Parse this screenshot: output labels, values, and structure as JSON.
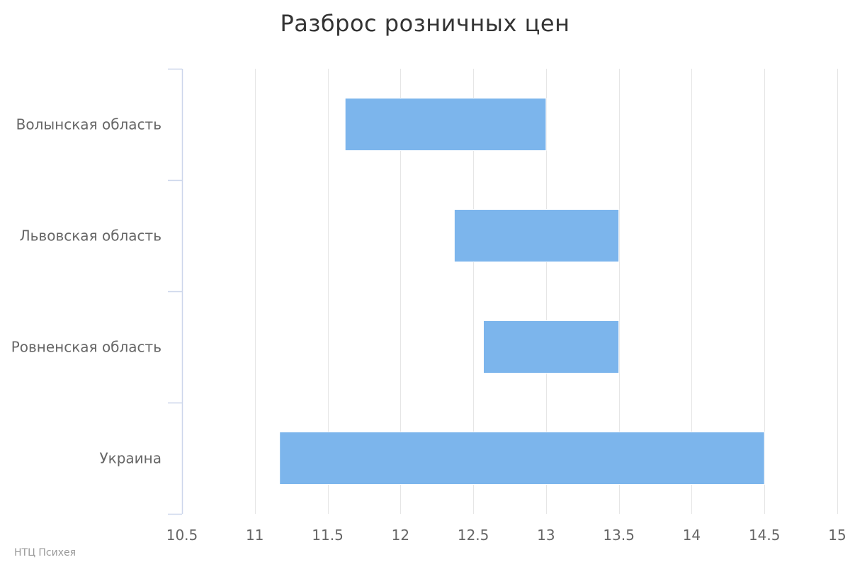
{
  "chart_data": {
    "type": "bar",
    "orientation": "horizontal",
    "subtype": "columnrange",
    "title": "Разброс розничных цен",
    "categories": [
      "Волынская область",
      "Львовская область",
      "Ровненская область",
      "Украина"
    ],
    "series": [
      {
        "ranges": [
          [
            11.62,
            13.0
          ],
          [
            12.37,
            13.5
          ],
          [
            12.57,
            13.5
          ],
          [
            11.17,
            14.5
          ]
        ]
      }
    ],
    "xlim": [
      10.5,
      15
    ],
    "x_ticks": [
      "10.5",
      "11",
      "11.5",
      "12",
      "12.5",
      "13",
      "13.5",
      "14",
      "14.5",
      "15"
    ],
    "grid": true,
    "legend": "none",
    "colors": {
      "bar": "#7cb5ec",
      "grid": "#e6e6e6",
      "axis": "#ccd6eb",
      "label": "#666666",
      "title": "#333333"
    }
  },
  "credits": "НТЦ Психея"
}
